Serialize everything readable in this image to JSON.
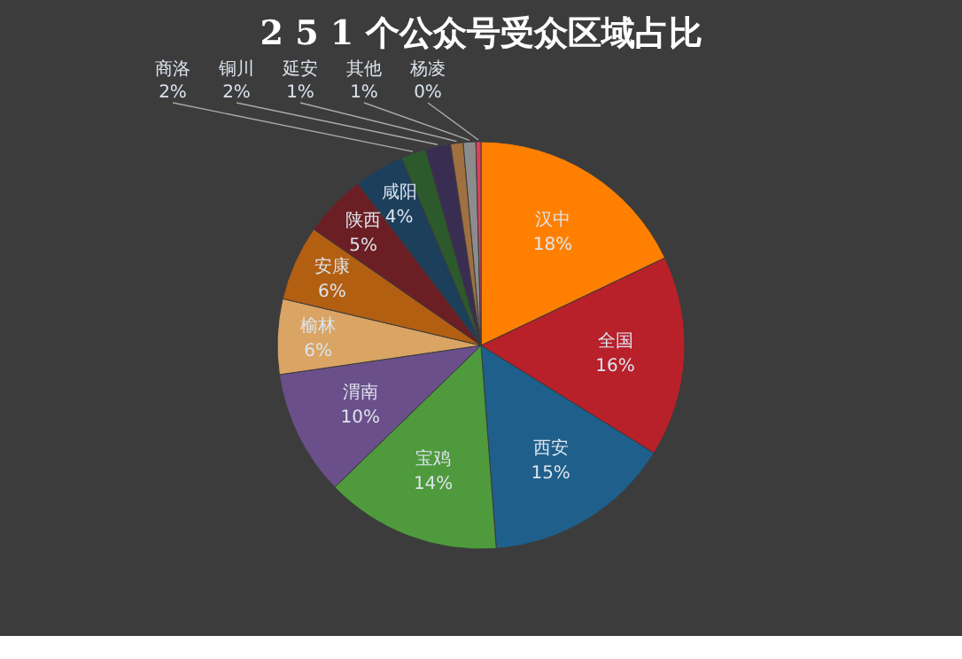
{
  "chart_data": {
    "type": "pie",
    "title": "2 5 1 个公众号受众区域占比",
    "categories": [
      "汉中",
      "全国",
      "西安",
      "宝鸡",
      "渭南",
      "榆林",
      "安康",
      "陕西",
      "咸阳",
      "商洛",
      "铜川",
      "延安",
      "其他",
      "杨凌"
    ],
    "values": [
      18,
      16,
      15,
      14,
      10,
      6,
      6,
      5,
      4,
      2,
      2,
      1,
      1,
      0.4
    ],
    "value_labels": [
      "18%",
      "16%",
      "15%",
      "14%",
      "10%",
      "6%",
      "6%",
      "5%",
      "4%",
      "2%",
      "2%",
      "1%",
      "1%",
      "0%"
    ],
    "colors": [
      "#ff8000",
      "#b8202a",
      "#1f5f8b",
      "#4e9a3c",
      "#6b4f8a",
      "#d9a464",
      "#b35f12",
      "#6b1f24",
      "#1c3f5c",
      "#2c5a2c",
      "#3a2d52",
      "#a07040",
      "#8c8c8c",
      "#e0405a"
    ]
  }
}
